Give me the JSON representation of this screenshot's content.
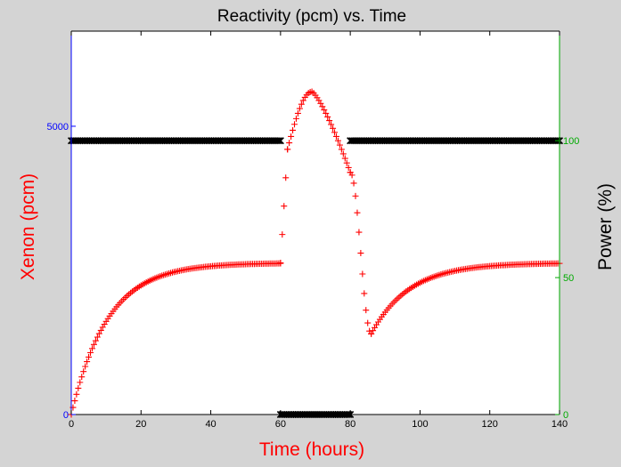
{
  "chart_data": {
    "type": "scatter",
    "title": "Reactivity (pcm) vs. Time",
    "xlabel": "Time (hours)",
    "ylabel_left": "Xenon (pcm)",
    "ylabel_right": "Power (%)",
    "xlim": [
      0,
      140
    ],
    "ylim_left": [
      0,
      10000
    ],
    "ylim_right": [
      0,
      100
    ],
    "left_axis_visible_top": 6650,
    "right_axis_visible_top": 140,
    "xticks": [
      0,
      20,
      40,
      60,
      80,
      100,
      120,
      140
    ],
    "xtick_labels": [
      "0",
      "20",
      "40",
      "60",
      "80",
      "100",
      "120",
      "140"
    ],
    "yticks_left": [
      0,
      5000
    ],
    "ytick_labels_left": [
      "0",
      "5000"
    ],
    "yticks_right": [
      0,
      50,
      100
    ],
    "ytick_labels_right": [
      "0",
      "50",
      "100"
    ],
    "grid": false,
    "legend": false,
    "series": [
      {
        "axis": "left",
        "marker": "plus",
        "color": "#ff0000",
        "x_step": 0.5,
        "segments": [
          {
            "x_start": 0,
            "x_end": 60,
            "model": "buildup",
            "equilibrium": 2630,
            "time_constant_h": 10.5
          },
          {
            "x_start": 60,
            "x_end": 62,
            "model": "linear",
            "from": 2630,
            "to": 4600
          },
          {
            "x_start": 62,
            "x_end": 80,
            "model": "peak",
            "start": 4600,
            "peak_x": 69,
            "peak": 5600,
            "end": 4200
          },
          {
            "x_start": 80,
            "x_end": 86,
            "model": "drop",
            "from": 4200,
            "to": 1400
          },
          {
            "x_start": 86,
            "x_end": 140,
            "model": "recovery",
            "from": 1400,
            "to": 2630,
            "time_constant_h": 11
          }
        ]
      },
      {
        "axis": "right",
        "marker": "x",
        "color": "#000000",
        "x_step": 0.5,
        "segments": [
          {
            "x_start": 0,
            "x_end": 60,
            "value": 100
          },
          {
            "x_start": 60,
            "x_end": 80,
            "value": 0
          },
          {
            "x_start": 80,
            "x_end": 140,
            "value": 100
          }
        ]
      }
    ]
  },
  "colors": {
    "background": "#d4d4d4",
    "plot_area": "#ffffff",
    "left_axis": "#0000ff",
    "right_axis": "#00aa00",
    "xenon": "#ff0000",
    "power": "#000000",
    "frame": "#000000"
  }
}
